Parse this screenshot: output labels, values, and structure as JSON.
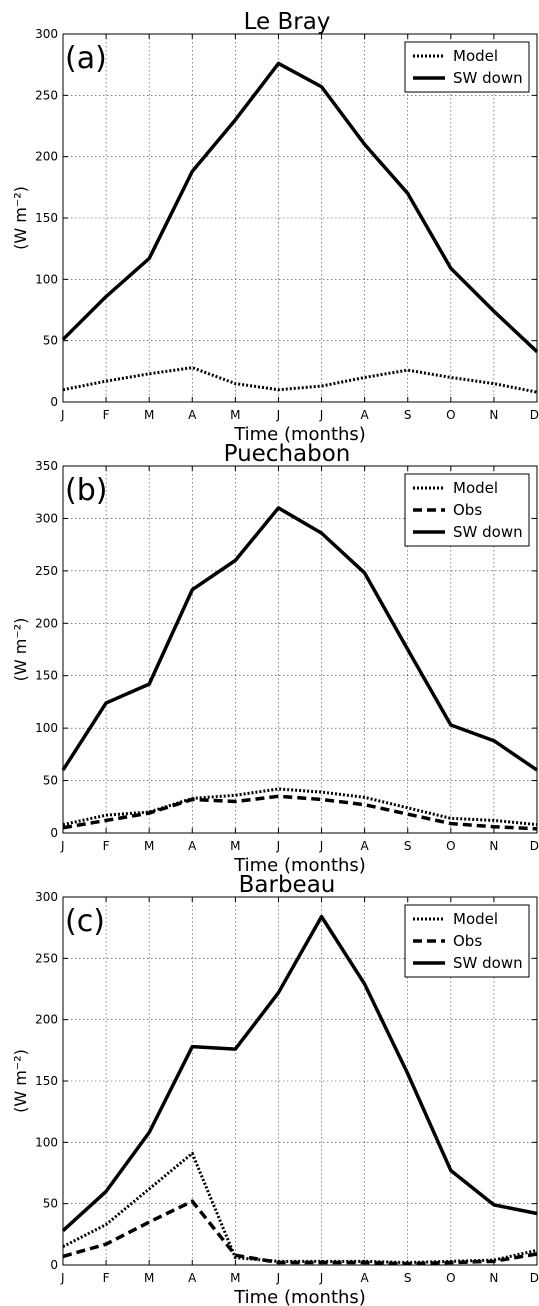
{
  "chart_data": [
    {
      "type": "line",
      "title": "Le Bray",
      "panel_label": "(a)",
      "xlabel": "Time (months)",
      "ylabel": "(W m⁻²)",
      "categories": [
        "J",
        "F",
        "M",
        "A",
        "M",
        "J",
        "J",
        "A",
        "S",
        "O",
        "N",
        "D"
      ],
      "ylim": [
        0,
        300
      ],
      "yticks": [
        0,
        50,
        100,
        150,
        200,
        250,
        300
      ],
      "grid": true,
      "legend_position": "top-right",
      "series": [
        {
          "name": "Model",
          "style": "dotted",
          "values": [
            10,
            17,
            23,
            28,
            15,
            10,
            13,
            20,
            26,
            20,
            15,
            8
          ]
        },
        {
          "name": "SW down",
          "style": "solid",
          "values": [
            51,
            86,
            117,
            188,
            230,
            276,
            257,
            210,
            170,
            109,
            74,
            41
          ]
        }
      ]
    },
    {
      "type": "line",
      "title": "Puechabon",
      "panel_label": "(b)",
      "xlabel": "Time (months)",
      "ylabel": "(W m⁻²)",
      "categories": [
        "J",
        "F",
        "M",
        "A",
        "M",
        "J",
        "J",
        "A",
        "S",
        "O",
        "N",
        "D"
      ],
      "ylim": [
        0,
        350
      ],
      "yticks": [
        0,
        50,
        100,
        150,
        200,
        250,
        300,
        350
      ],
      "grid": true,
      "legend_position": "top-right",
      "series": [
        {
          "name": "Model",
          "style": "dotted",
          "values": [
            8,
            17,
            20,
            33,
            36,
            42,
            39,
            34,
            24,
            14,
            12,
            8
          ]
        },
        {
          "name": "Obs",
          "style": "dashed",
          "values": [
            5,
            12,
            19,
            32,
            30,
            35,
            32,
            27,
            18,
            9,
            6,
            4
          ]
        },
        {
          "name": "SW down",
          "style": "solid",
          "values": [
            60,
            124,
            142,
            232,
            260,
            310,
            286,
            248,
            175,
            103,
            88,
            60
          ]
        }
      ]
    },
    {
      "type": "line",
      "title": "Barbeau",
      "panel_label": "(c)",
      "xlabel": "Time (months)",
      "ylabel": "(W m⁻²)",
      "categories": [
        "J",
        "F",
        "M",
        "A",
        "M",
        "J",
        "J",
        "A",
        "S",
        "O",
        "N",
        "D"
      ],
      "ylim": [
        0,
        300
      ],
      "yticks": [
        0,
        50,
        100,
        150,
        200,
        250,
        300
      ],
      "grid": true,
      "legend_position": "top-right",
      "series": [
        {
          "name": "Model",
          "style": "dotted",
          "values": [
            15,
            33,
            62,
            91,
            6,
            3,
            3,
            3,
            2,
            3,
            4,
            12
          ]
        },
        {
          "name": "Obs",
          "style": "dashed",
          "values": [
            7,
            17,
            35,
            52,
            8,
            2,
            2,
            2,
            1,
            2,
            3,
            9
          ]
        },
        {
          "name": "SW down",
          "style": "solid",
          "values": [
            28,
            60,
            108,
            178,
            176,
            222,
            284,
            229,
            156,
            77,
            49,
            42
          ]
        }
      ]
    }
  ]
}
